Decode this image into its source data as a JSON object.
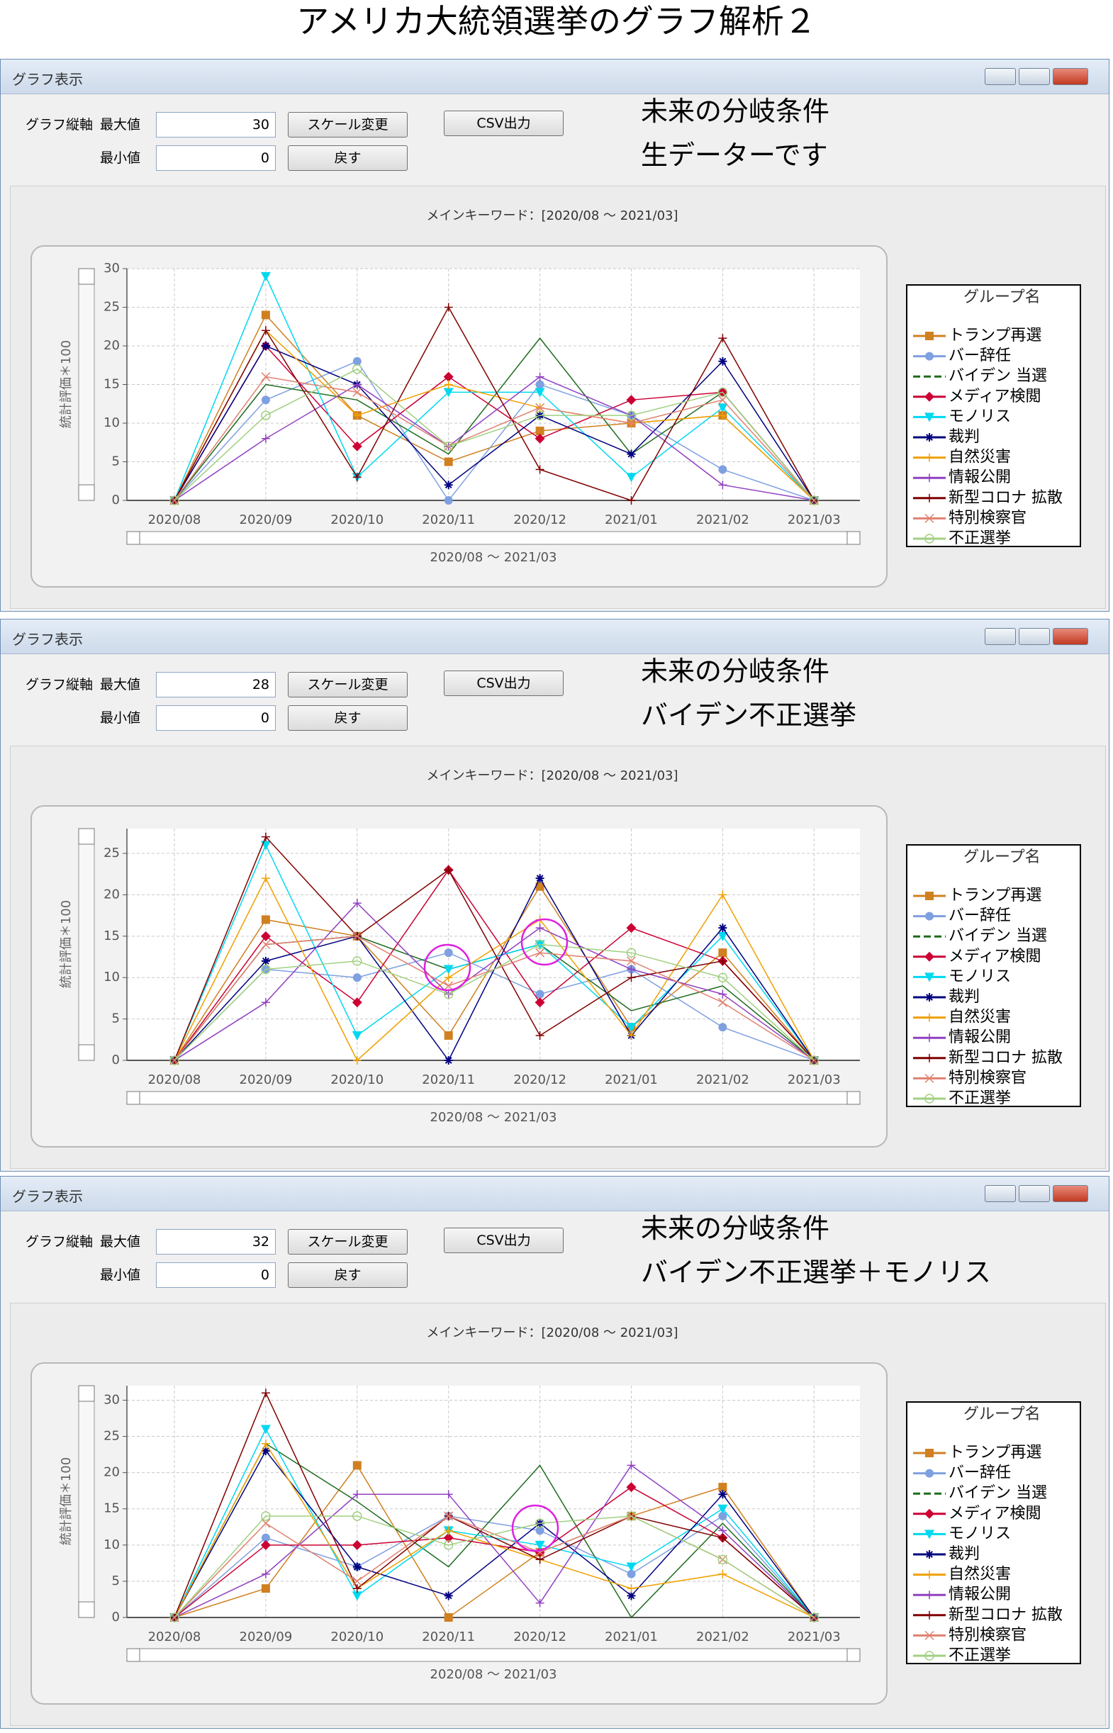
{
  "title": "アメリカ大統領選挙のグラフ解析２",
  "windows": [
    {
      "window_title": "グラフ表示",
      "axis_label": "グラフ縦軸",
      "max_label": "最大値",
      "max_value": "30",
      "min_label": "最小値",
      "min_value": "0",
      "scale_button": "スケール変更",
      "reset_button": "戻す",
      "csv_button": "CSV出力",
      "notes": [
        "未来の分岐条件",
        "生データーです"
      ]
    },
    {
      "window_title": "グラフ表示",
      "axis_label": "グラフ縦軸",
      "max_label": "最大値",
      "max_value": "28",
      "min_label": "最小値",
      "min_value": "0",
      "scale_button": "スケール変更",
      "reset_button": "戻す",
      "csv_button": "CSV出力",
      "notes": [
        "未来の分岐条件",
        "バイデン不正選挙"
      ]
    },
    {
      "window_title": "グラフ表示",
      "axis_label": "グラフ縦軸",
      "max_label": "最大値",
      "max_value": "32",
      "min_label": "最小値",
      "min_value": "0",
      "scale_button": "スケール変更",
      "reset_button": "戻す",
      "csv_button": "CSV出力",
      "notes": [
        "未来の分岐条件",
        "バイデン不正選挙＋モノリス"
      ]
    }
  ],
  "chart_data": [
    {
      "type": "line",
      "title": "メインキーワード：[2020/08 ～ 2021/03]",
      "y_label": "統計評価＊100",
      "x_label": "2020/08 ～ 2021/03",
      "legend_title": "グループ名",
      "grid": true,
      "categories": [
        "2020/08",
        "2020/09",
        "2020/10",
        "2020/11",
        "2020/12",
        "2021/01",
        "2021/02",
        "2021/03"
      ],
      "ylim": [
        0,
        30
      ],
      "yticks": [
        0,
        5,
        10,
        15,
        20,
        25,
        30
      ],
      "series": [
        {
          "name": "トランプ再選",
          "color": "#d08020",
          "marker": "square",
          "values": [
            0,
            24,
            11,
            5,
            9,
            10,
            11,
            0
          ]
        },
        {
          "name": "バー辞任",
          "color": "#7fa0e0",
          "marker": "circle",
          "values": [
            0,
            13,
            18,
            0,
            15,
            11,
            4,
            0
          ]
        },
        {
          "name": "バイデン 当選",
          "color": "#1e6b1e",
          "marker": "none",
          "values": [
            0,
            15,
            13,
            6,
            21,
            6,
            14,
            0
          ]
        },
        {
          "name": "メディア検閲",
          "color": "#cc0033",
          "marker": "diamond",
          "values": [
            0,
            20,
            7,
            16,
            8,
            13,
            14,
            0
          ]
        },
        {
          "name": "モノリス",
          "color": "#00d8f0",
          "marker": "triangle",
          "values": [
            0,
            29,
            3,
            14,
            14,
            3,
            12,
            0
          ]
        },
        {
          "name": "裁判",
          "color": "#000080",
          "marker": "star",
          "values": [
            0,
            20,
            15,
            2,
            11,
            6,
            18,
            0
          ]
        },
        {
          "name": "自然災害",
          "color": "#f0a000",
          "marker": "plus",
          "values": [
            0,
            22,
            11,
            15,
            12,
            10,
            11,
            0
          ]
        },
        {
          "name": "情報公開",
          "color": "#9040c0",
          "marker": "plus",
          "values": [
            0,
            8,
            15,
            7,
            16,
            11,
            2,
            0
          ]
        },
        {
          "name": "新型コロナ 拡散",
          "color": "#800000",
          "marker": "plus",
          "values": [
            0,
            22,
            3,
            25,
            4,
            0,
            21,
            0
          ]
        },
        {
          "name": "特別検察官",
          "color": "#e08070",
          "marker": "x",
          "values": [
            0,
            16,
            14,
            7,
            12,
            10,
            13,
            0
          ]
        },
        {
          "name": "不正選挙",
          "color": "#a0d080",
          "marker": "circle-open",
          "values": [
            0,
            11,
            17,
            7,
            11,
            11,
            14,
            0
          ]
        }
      ]
    },
    {
      "type": "line",
      "title": "メインキーワード：[2020/08 ～ 2021/03]",
      "y_label": "統計評価＊100",
      "x_label": "2020/08 ～ 2021/03",
      "legend_title": "グループ名",
      "grid": true,
      "categories": [
        "2020/08",
        "2020/09",
        "2020/10",
        "2020/11",
        "2020/12",
        "2021/01",
        "2021/02",
        "2021/03"
      ],
      "ylim": [
        0,
        28
      ],
      "yticks": [
        0,
        5,
        10,
        15,
        20,
        25
      ],
      "series": [
        {
          "name": "トランプ再選",
          "color": "#d08020",
          "marker": "square",
          "values": [
            0,
            17,
            15,
            3,
            21,
            4,
            13,
            0
          ]
        },
        {
          "name": "バー辞任",
          "color": "#7fa0e0",
          "marker": "circle",
          "values": [
            0,
            11,
            10,
            13,
            8,
            11,
            4,
            0
          ]
        },
        {
          "name": "バイデン 当選",
          "color": "#1e6b1e",
          "marker": "none",
          "values": [
            0,
            14,
            15,
            11,
            14,
            6,
            9,
            0
          ]
        },
        {
          "name": "メディア検閲",
          "color": "#cc0033",
          "marker": "diamond",
          "values": [
            0,
            15,
            7,
            23,
            7,
            16,
            12,
            0
          ]
        },
        {
          "name": "モノリス",
          "color": "#00d8f0",
          "marker": "triangle",
          "values": [
            0,
            26,
            3,
            11,
            14,
            4,
            15,
            0
          ]
        },
        {
          "name": "裁判",
          "color": "#000080",
          "marker": "star",
          "values": [
            0,
            12,
            15,
            0,
            22,
            3,
            16,
            0
          ]
        },
        {
          "name": "自然災害",
          "color": "#f0a000",
          "marker": "plus",
          "values": [
            0,
            22,
            0,
            10,
            17,
            3,
            20,
            0
          ]
        },
        {
          "name": "情報公開",
          "color": "#9040c0",
          "marker": "plus",
          "values": [
            0,
            7,
            19,
            8,
            16,
            11,
            8,
            0
          ]
        },
        {
          "name": "新型コロナ 拡散",
          "color": "#800000",
          "marker": "plus",
          "values": [
            0,
            27,
            15,
            23,
            3,
            10,
            12,
            0
          ]
        },
        {
          "name": "特別検察官",
          "color": "#e08070",
          "marker": "x",
          "values": [
            0,
            14,
            15,
            9,
            13,
            12,
            7,
            0
          ]
        },
        {
          "name": "不正選挙",
          "color": "#a0d080",
          "marker": "circle-open",
          "values": [
            0,
            11,
            12,
            8,
            14,
            13,
            10,
            0
          ]
        }
      ]
    },
    {
      "type": "line",
      "title": "メインキーワード：[2020/08 ～ 2021/03]",
      "y_label": "統計評価＊100",
      "x_label": "2020/08 ～ 2021/03",
      "legend_title": "グループ名",
      "grid": true,
      "categories": [
        "2020/08",
        "2020/09",
        "2020/10",
        "2020/11",
        "2020/12",
        "2021/01",
        "2021/02",
        "2021/03"
      ],
      "ylim": [
        0,
        32
      ],
      "yticks": [
        0,
        5,
        10,
        15,
        20,
        25,
        30
      ],
      "series": [
        {
          "name": "トランプ再選",
          "color": "#d08020",
          "marker": "square",
          "values": [
            0,
            4,
            21,
            0,
            9,
            14,
            18,
            0
          ]
        },
        {
          "name": "バー辞任",
          "color": "#7fa0e0",
          "marker": "circle",
          "values": [
            0,
            11,
            7,
            14,
            12,
            6,
            14,
            0
          ]
        },
        {
          "name": "バイデン 当選",
          "color": "#1e6b1e",
          "marker": "none",
          "values": [
            0,
            24,
            16,
            7,
            21,
            0,
            13,
            0
          ]
        },
        {
          "name": "メディア検閲",
          "color": "#cc0033",
          "marker": "diamond",
          "values": [
            0,
            10,
            10,
            11,
            9,
            18,
            11,
            0
          ]
        },
        {
          "name": "モノリス",
          "color": "#00d8f0",
          "marker": "triangle",
          "values": [
            0,
            26,
            3,
            12,
            10,
            7,
            15,
            0
          ]
        },
        {
          "name": "裁判",
          "color": "#000080",
          "marker": "star",
          "values": [
            0,
            23,
            7,
            3,
            13,
            3,
            17,
            0
          ]
        },
        {
          "name": "自然災害",
          "color": "#f0a000",
          "marker": "plus",
          "values": [
            0,
            24,
            4,
            12,
            8,
            4,
            6,
            0
          ]
        },
        {
          "name": "情報公開",
          "color": "#9040c0",
          "marker": "plus",
          "values": [
            0,
            6,
            17,
            17,
            2,
            21,
            12,
            0
          ]
        },
        {
          "name": "新型コロナ 拡散",
          "color": "#800000",
          "marker": "plus",
          "values": [
            0,
            31,
            4,
            14,
            8,
            14,
            11,
            0
          ]
        },
        {
          "name": "特別検察官",
          "color": "#e08070",
          "marker": "x",
          "values": [
            0,
            13,
            5,
            14,
            9,
            14,
            8,
            0
          ]
        },
        {
          "name": "不正選挙",
          "color": "#a0d080",
          "marker": "circle-open",
          "values": [
            0,
            14,
            14,
            10,
            13,
            14,
            8,
            0
          ]
        }
      ]
    }
  ]
}
